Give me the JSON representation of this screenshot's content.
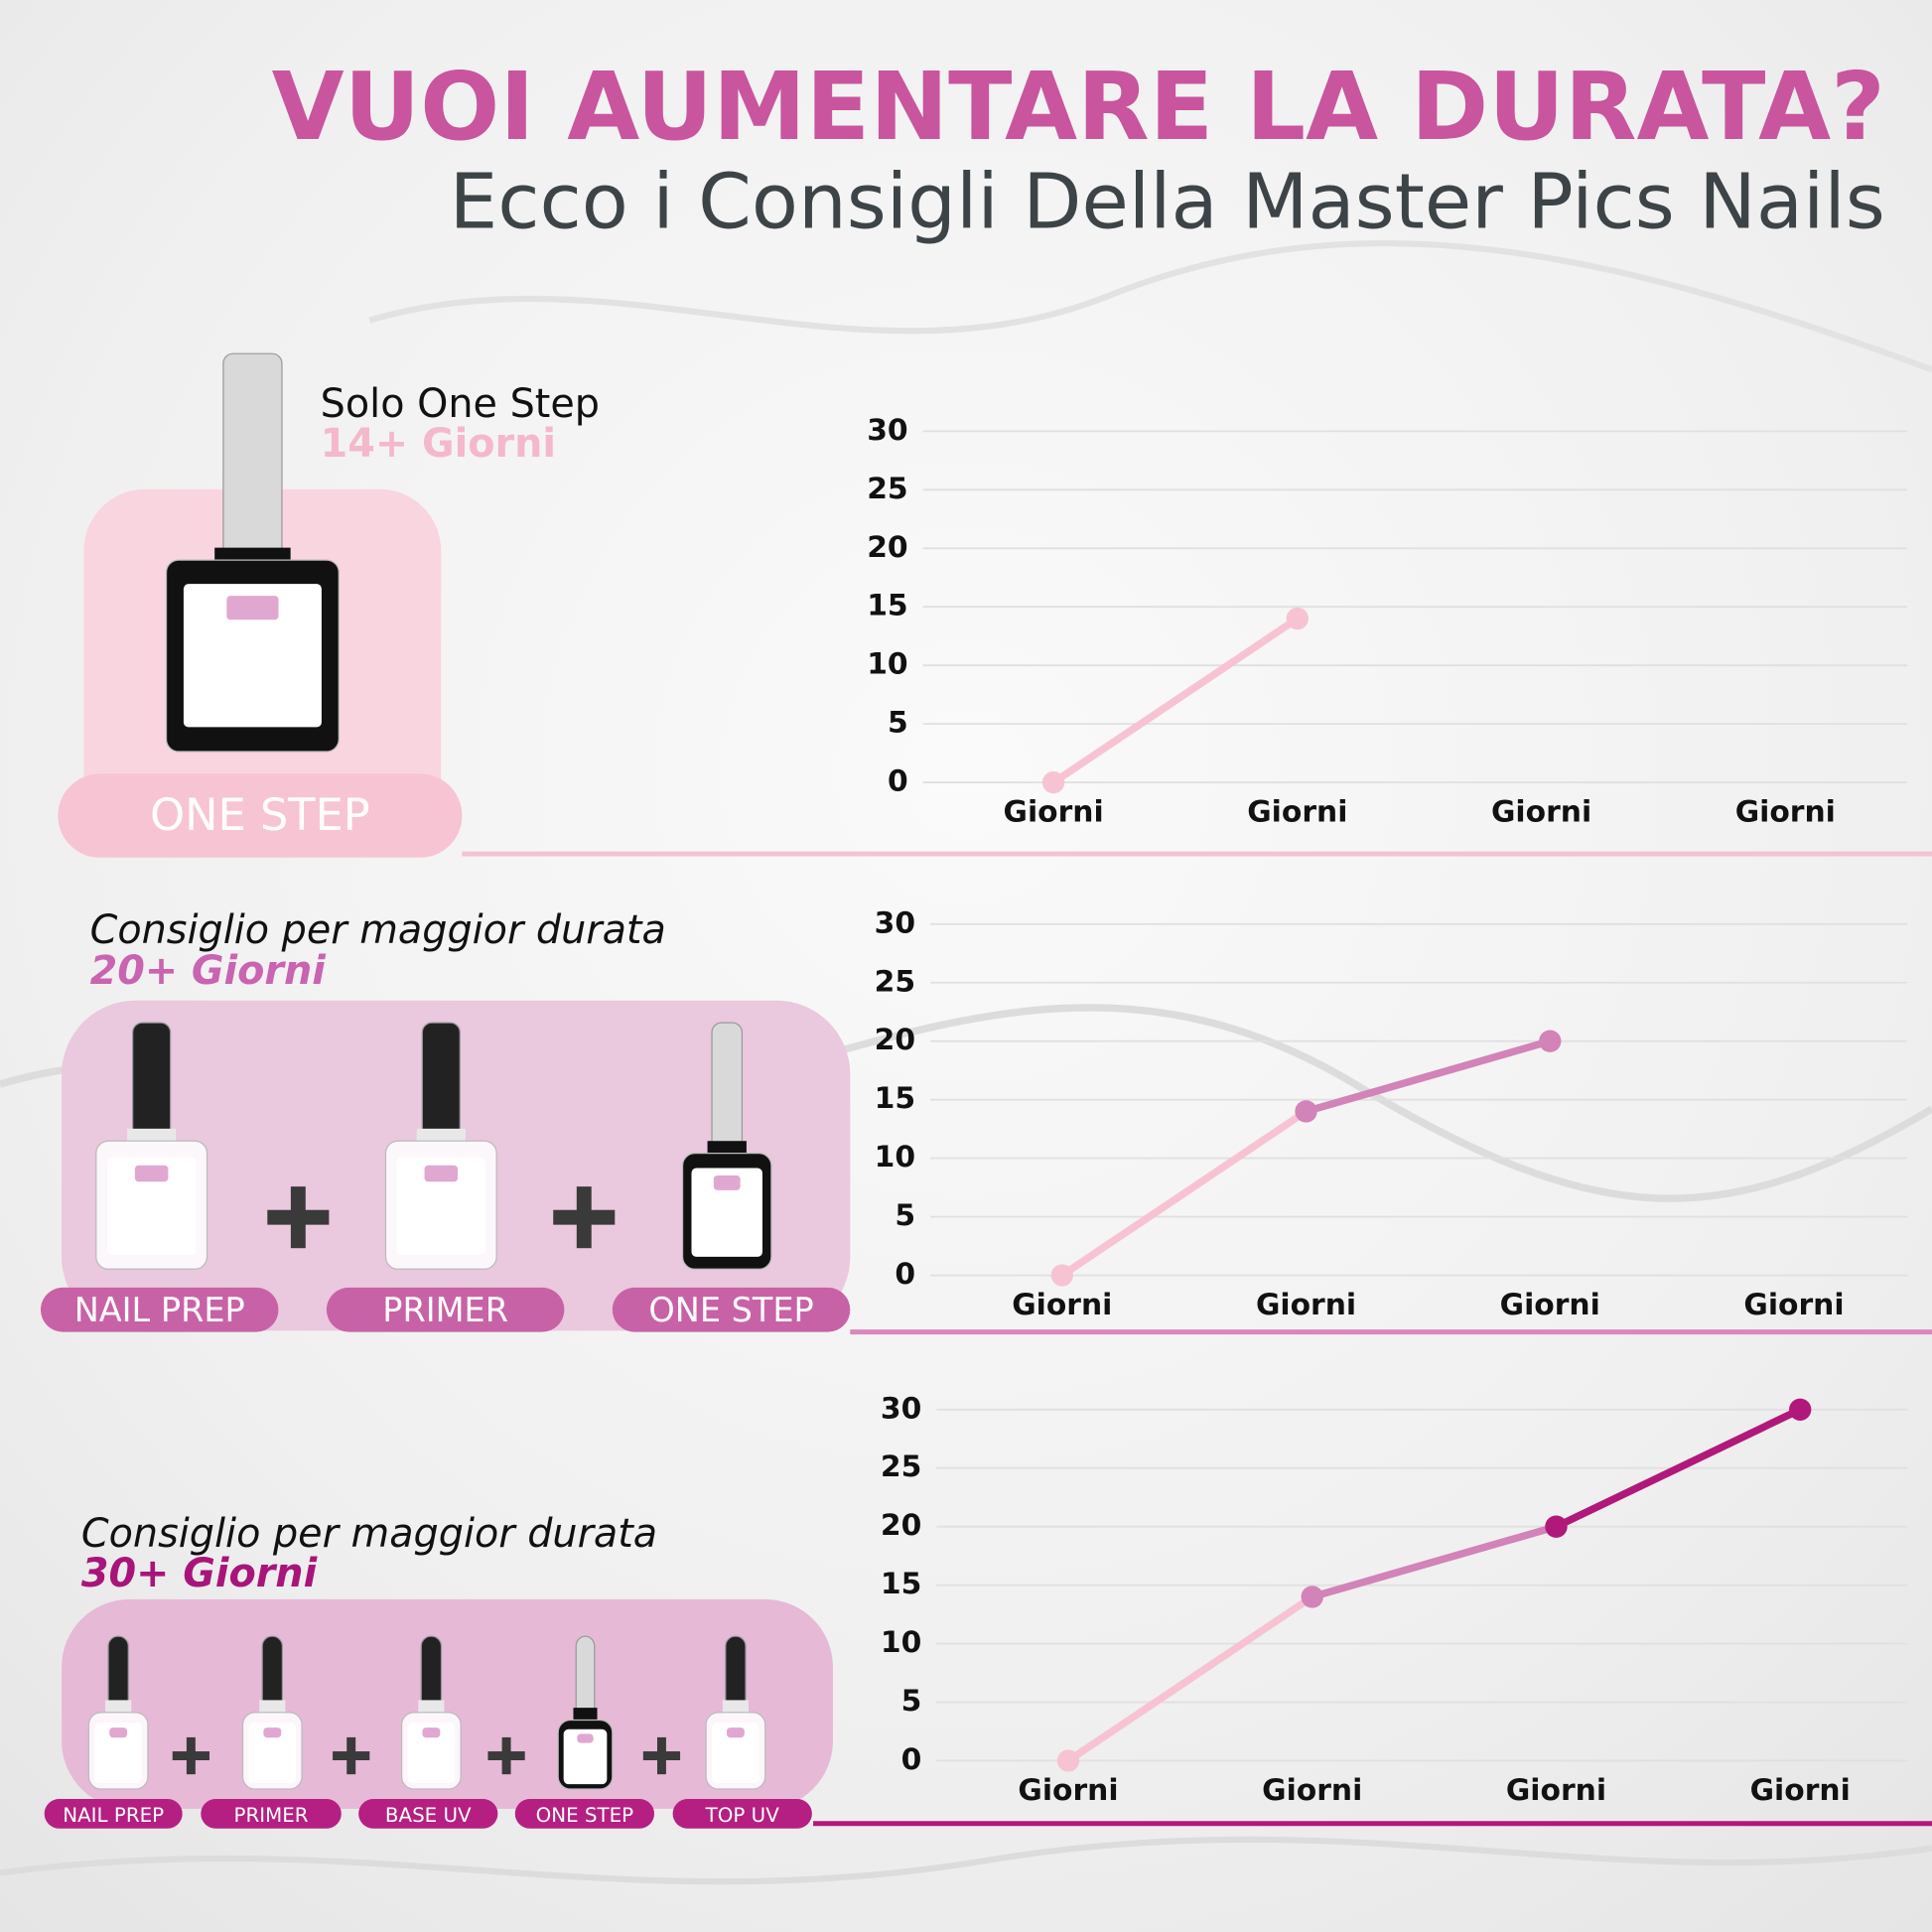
{
  "header": {
    "title": "VUOI AUMENTARE LA DURATA?",
    "subtitle": "Ecco i Consigli Della Master Pics Nails"
  },
  "sections": [
    {
      "heading": "Solo One Step",
      "duration": "14+ Giorni",
      "products": [
        "ONE STEP"
      ]
    },
    {
      "heading": "Consiglio per maggior durata",
      "duration": "20+ Giorni",
      "products": [
        "NAIL PREP",
        "PRIMER",
        "ONE STEP"
      ]
    },
    {
      "heading": "Consiglio per maggior durata",
      "duration": "30+ Giorni",
      "products": [
        "NAIL PREP",
        "PRIMER",
        "BASE UV",
        "ONE STEP",
        "TOP UV"
      ]
    }
  ],
  "chart_data": [
    {
      "type": "line",
      "categories": [
        "Giorni",
        "Giorni",
        "Giorni",
        "Giorni"
      ],
      "series": [
        {
          "color": "#f7c3d2",
          "values": [
            0,
            14,
            null,
            null
          ]
        }
      ],
      "ylim": [
        0,
        30
      ],
      "yticks": [
        0,
        5,
        10,
        15,
        20,
        25,
        30
      ],
      "grid": true
    },
    {
      "type": "line",
      "categories": [
        "Giorni",
        "Giorni",
        "Giorni",
        "Giorni"
      ],
      "series": [
        {
          "color": "#f7c3d2",
          "values": [
            0,
            14,
            null,
            null
          ]
        },
        {
          "color": "#d283b8",
          "values": [
            null,
            14,
            20,
            null
          ]
        }
      ],
      "ylim": [
        0,
        30
      ],
      "yticks": [
        0,
        5,
        10,
        15,
        20,
        25,
        30
      ],
      "grid": true
    },
    {
      "type": "line",
      "categories": [
        "Giorni",
        "Giorni",
        "Giorni",
        "Giorni"
      ],
      "series": [
        {
          "color": "#f7c3d2",
          "values": [
            0,
            14,
            null,
            null
          ]
        },
        {
          "color": "#d283b8",
          "values": [
            null,
            14,
            20,
            null
          ]
        },
        {
          "color": "#b0197a",
          "values": [
            null,
            null,
            20,
            30
          ]
        }
      ],
      "ylim": [
        0,
        30
      ],
      "yticks": [
        0,
        5,
        10,
        15,
        20,
        25,
        30
      ],
      "grid": true
    }
  ]
}
